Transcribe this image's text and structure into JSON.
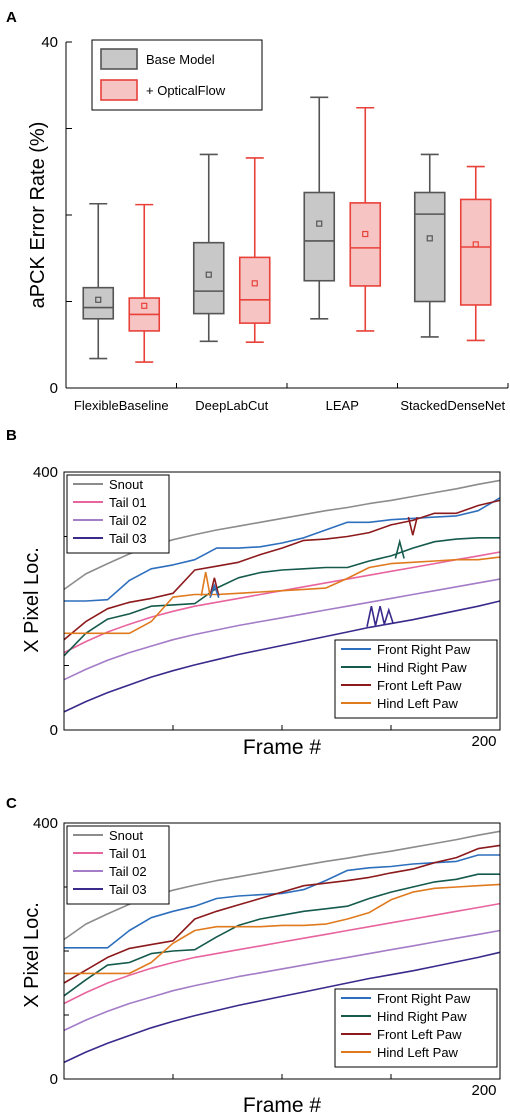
{
  "panels": [
    {
      "label": "A"
    },
    {
      "label": "B"
    },
    {
      "label": "C"
    }
  ],
  "chart_data": [
    {
      "type": "box",
      "panel": "A",
      "ylabel": "aPCK Error Rate (%)",
      "ylim": [
        0,
        40
      ],
      "yticks": [
        0,
        40
      ],
      "categories": [
        "FlexibleBaseline",
        "DeepLabCut",
        "LEAP",
        "StackedDenseNet"
      ],
      "series": [
        {
          "name": "Base Model",
          "color": "#555555",
          "fill": "#c8c8c8",
          "boxes": [
            {
              "min": 3.4,
              "q1": 8.0,
              "median": 9.3,
              "q3": 11.6,
              "max": 21.3,
              "mean": 10.2
            },
            {
              "min": 5.4,
              "q1": 8.6,
              "median": 11.2,
              "q3": 16.8,
              "max": 27.0,
              "mean": 13.1
            },
            {
              "min": 8.0,
              "q1": 12.4,
              "median": 17.0,
              "q3": 22.6,
              "max": 33.6,
              "mean": 19.0
            },
            {
              "min": 5.9,
              "q1": 10.0,
              "median": 20.1,
              "q3": 22.6,
              "max": 27.0,
              "mean": 17.3
            }
          ]
        },
        {
          "name": "+ OpticalFlow",
          "color": "#e8413a",
          "fill": "#f7c4c4",
          "boxes": [
            {
              "min": 3.0,
              "q1": 6.6,
              "median": 8.5,
              "q3": 10.4,
              "max": 21.2,
              "mean": 9.5
            },
            {
              "min": 5.3,
              "q1": 7.5,
              "median": 10.2,
              "q3": 15.1,
              "max": 26.6,
              "mean": 12.1
            },
            {
              "min": 6.6,
              "q1": 11.8,
              "median": 16.2,
              "q3": 21.4,
              "max": 32.4,
              "mean": 17.8
            },
            {
              "min": 5.5,
              "q1": 9.6,
              "median": 16.3,
              "q3": 21.8,
              "max": 25.6,
              "mean": 16.6
            }
          ]
        }
      ]
    },
    {
      "type": "line",
      "panel": "B",
      "xlabel": "Frame #",
      "ylabel": "X Pixel Loc.",
      "xlim": [
        0,
        200
      ],
      "ylim": [
        0,
        400
      ],
      "yticks": [
        0,
        400
      ],
      "xticks_labeled": [
        200
      ],
      "x": [
        0,
        10,
        20,
        30,
        40,
        50,
        60,
        70,
        80,
        90,
        100,
        110,
        120,
        130,
        140,
        150,
        160,
        170,
        180,
        190,
        200
      ],
      "series": [
        {
          "name": "Snout",
          "color": "#8c8c8c",
          "values": [
            218,
            242,
            258,
            273,
            285,
            295,
            303,
            310,
            316,
            322,
            328,
            334,
            340,
            345,
            351,
            356,
            362,
            368,
            374,
            381,
            387
          ]
        },
        {
          "name": "Tail 01",
          "color": "#e8649e",
          "values": [
            120,
            137,
            152,
            164,
            175,
            184,
            192,
            198,
            204,
            210,
            216,
            222,
            228,
            234,
            240,
            246,
            252,
            258,
            264,
            270,
            276
          ]
        },
        {
          "name": "Tail 02",
          "color": "#a47cc8",
          "values": [
            78,
            94,
            108,
            120,
            130,
            140,
            148,
            155,
            162,
            168,
            174,
            180,
            186,
            192,
            198,
            204,
            210,
            216,
            222,
            228,
            234
          ]
        },
        {
          "name": "Tail 03",
          "color": "#3a2a8c",
          "values": [
            28,
            44,
            58,
            70,
            82,
            92,
            101,
            109,
            117,
            124,
            131,
            138,
            145,
            152,
            159,
            165,
            171,
            178,
            185,
            192,
            200
          ]
        },
        {
          "name": "Front Right Paw",
          "color": "#2e6fbd",
          "values": [
            200,
            200,
            202,
            232,
            250,
            256,
            264,
            282,
            282,
            284,
            290,
            298,
            310,
            322,
            322,
            326,
            328,
            330,
            332,
            340,
            360
          ]
        },
        {
          "name": "Hind Right Paw",
          "color": "#155a4c",
          "values": [
            115,
            150,
            172,
            180,
            192,
            194,
            196,
            220,
            236,
            244,
            248,
            250,
            252,
            252,
            262,
            270,
            282,
            292,
            296,
            298,
            298
          ]
        },
        {
          "name": "Front Left Paw",
          "color": "#8c1a1c",
          "values": [
            140,
            168,
            188,
            198,
            204,
            212,
            248,
            254,
            260,
            272,
            282,
            294,
            296,
            300,
            306,
            318,
            325,
            336,
            336,
            348,
            356
          ]
        },
        {
          "name": "Hind Left Paw",
          "color": "#e07a1e",
          "values": [
            150,
            150,
            150,
            150,
            168,
            206,
            210,
            210,
            212,
            214,
            216,
            218,
            220,
            235,
            252,
            258,
            260,
            262,
            264,
            264,
            268
          ]
        }
      ]
    },
    {
      "type": "line",
      "panel": "C",
      "xlabel": "Frame #",
      "ylabel": "X Pixel Loc.",
      "xlim": [
        0,
        200
      ],
      "ylim": [
        0,
        400
      ],
      "yticks": [
        0,
        400
      ],
      "xticks_labeled": [
        200
      ],
      "x": [
        0,
        10,
        20,
        30,
        40,
        50,
        60,
        70,
        80,
        90,
        100,
        110,
        120,
        130,
        140,
        150,
        160,
        170,
        180,
        190,
        200
      ],
      "series": [
        {
          "name": "Snout",
          "color": "#8c8c8c",
          "values": [
            218,
            242,
            258,
            273,
            285,
            295,
            303,
            310,
            316,
            322,
            328,
            334,
            340,
            345,
            351,
            356,
            362,
            368,
            374,
            381,
            387
          ]
        },
        {
          "name": "Tail 01",
          "color": "#e8649e",
          "values": [
            118,
            135,
            150,
            162,
            173,
            182,
            190,
            196,
            202,
            208,
            214,
            220,
            226,
            232,
            238,
            244,
            250,
            256,
            262,
            268,
            274
          ]
        },
        {
          "name": "Tail 02",
          "color": "#a47cc8",
          "values": [
            76,
            92,
            106,
            118,
            128,
            138,
            146,
            153,
            160,
            166,
            172,
            178,
            184,
            190,
            196,
            202,
            208,
            214,
            220,
            226,
            232
          ]
        },
        {
          "name": "Tail 03",
          "color": "#3a2a8c",
          "values": [
            26,
            42,
            56,
            68,
            80,
            90,
            99,
            107,
            115,
            122,
            129,
            136,
            143,
            150,
            157,
            163,
            169,
            176,
            183,
            190,
            198
          ]
        },
        {
          "name": "Front Right Paw",
          "color": "#2e6fbd",
          "values": [
            205,
            205,
            205,
            232,
            252,
            262,
            270,
            282,
            286,
            288,
            290,
            296,
            310,
            326,
            330,
            332,
            336,
            338,
            340,
            350,
            350
          ]
        },
        {
          "name": "Hind Right Paw",
          "color": "#155a4c",
          "values": [
            130,
            155,
            178,
            182,
            196,
            200,
            202,
            222,
            240,
            250,
            256,
            262,
            266,
            270,
            282,
            292,
            300,
            308,
            312,
            320,
            320
          ]
        },
        {
          "name": "Front Left Paw",
          "color": "#8c1a1c",
          "values": [
            150,
            170,
            190,
            204,
            210,
            216,
            250,
            262,
            272,
            282,
            292,
            302,
            306,
            310,
            315,
            322,
            328,
            338,
            346,
            360,
            365
          ]
        },
        {
          "name": "Hind Left Paw",
          "color": "#e07a1e",
          "values": [
            165,
            165,
            165,
            165,
            182,
            212,
            232,
            238,
            238,
            238,
            240,
            240,
            242,
            250,
            260,
            280,
            292,
            298,
            300,
            302,
            304
          ]
        }
      ]
    }
  ]
}
